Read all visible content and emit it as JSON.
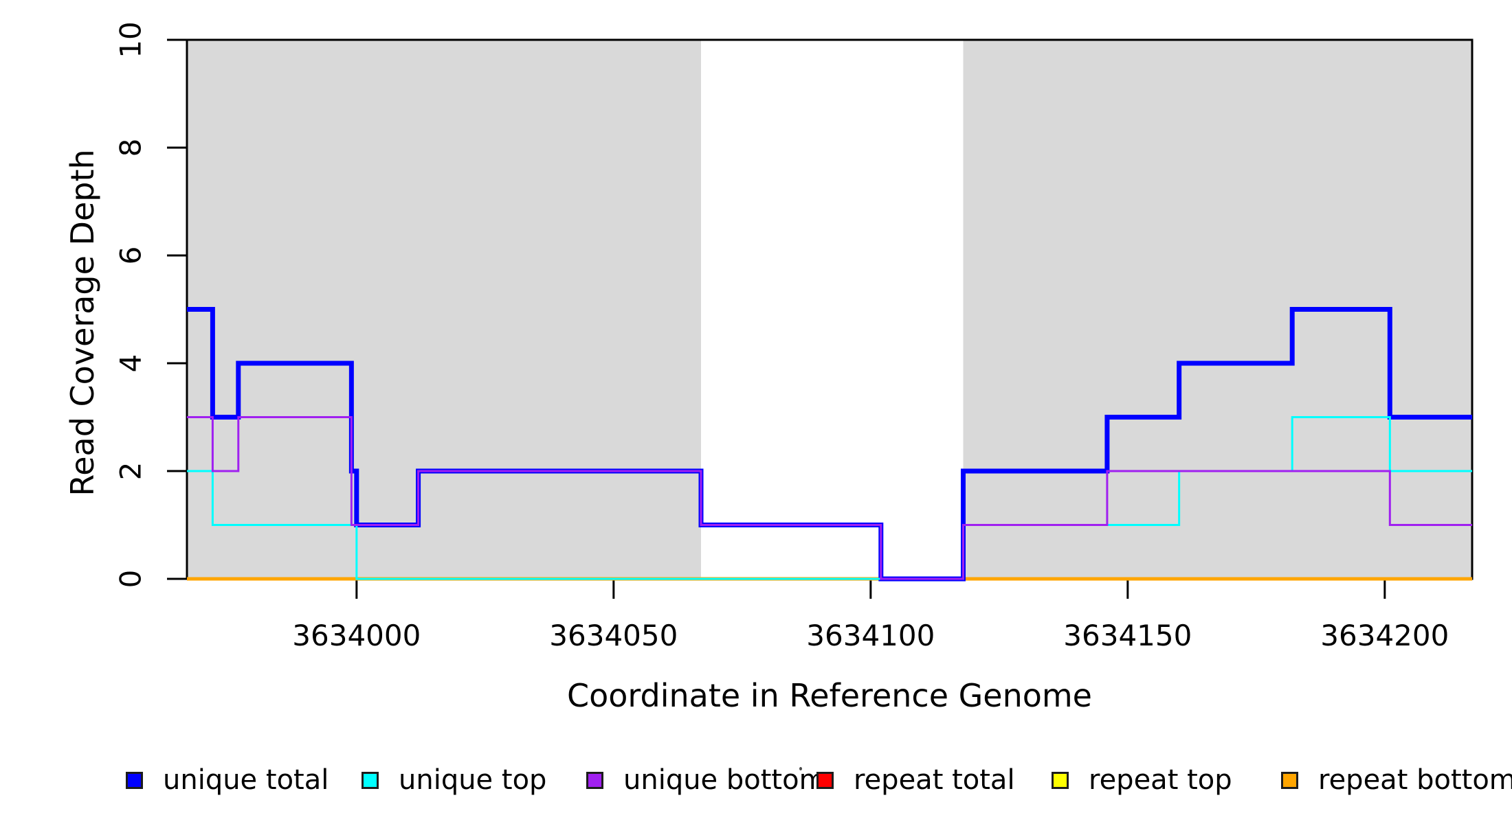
{
  "chart_data": {
    "type": "line",
    "subtype": "step-coverage",
    "title": "",
    "xlabel": "Coordinate in Reference Genome",
    "ylabel": "Read Coverage Depth",
    "xlim": [
      3633967,
      3634217
    ],
    "ylim": [
      0,
      10
    ],
    "x_ticks": [
      3634000,
      3634050,
      3634100,
      3634150,
      3634200
    ],
    "x_tick_labels": [
      "3634000",
      "3634050",
      "3634100",
      "3634150",
      "3634200"
    ],
    "y_ticks": [
      0,
      2,
      4,
      6,
      8,
      10
    ],
    "y_tick_labels": [
      "0",
      "2",
      "4",
      "6",
      "8",
      "10"
    ],
    "grid": false,
    "axis_color": "#000000",
    "background_shading": {
      "color": "#D9D9D9",
      "regions": [
        {
          "x0": 3633967,
          "x1": 3634067
        },
        {
          "x0": 3634118,
          "x1": 3634217
        }
      ]
    },
    "series": [
      {
        "name": "unique total",
        "color": "#0000FF",
        "line_width": 7,
        "z": 4,
        "steps": [
          [
            3633967,
            5
          ],
          [
            3633972,
            3
          ],
          [
            3633977,
            4
          ],
          [
            3633999,
            2
          ],
          [
            3634000,
            1
          ],
          [
            3634012,
            2
          ],
          [
            3634067,
            1
          ],
          [
            3634102,
            0
          ],
          [
            3634118,
            2
          ],
          [
            3634146,
            3
          ],
          [
            3634160,
            4
          ],
          [
            3634182,
            5
          ],
          [
            3634201,
            3
          ],
          [
            3634217,
            3
          ]
        ]
      },
      {
        "name": "unique top",
        "color": "#00FFFF",
        "line_width": 3,
        "z": 5,
        "steps": [
          [
            3633967,
            2
          ],
          [
            3633972,
            1
          ],
          [
            3634000,
            0
          ],
          [
            3634118,
            1
          ],
          [
            3634160,
            2
          ],
          [
            3634182,
            3
          ],
          [
            3634201,
            2
          ],
          [
            3634217,
            2
          ]
        ]
      },
      {
        "name": "unique bottom",
        "color": "#A020F0",
        "line_width": 3,
        "z": 6,
        "steps": [
          [
            3633967,
            3
          ],
          [
            3633972,
            2
          ],
          [
            3633977,
            3
          ],
          [
            3633999,
            1
          ],
          [
            3634012,
            2
          ],
          [
            3634067,
            1
          ],
          [
            3634102,
            0
          ],
          [
            3634118,
            1
          ],
          [
            3634146,
            2
          ],
          [
            3634201,
            1
          ],
          [
            3634217,
            1
          ]
        ]
      },
      {
        "name": "repeat total",
        "color": "#FF0000",
        "line_width": 3,
        "z": 1,
        "steps": [
          [
            3633967,
            0
          ],
          [
            3634217,
            0
          ]
        ]
      },
      {
        "name": "repeat top",
        "color": "#FFFF00",
        "line_width": 3,
        "z": 2,
        "steps": [
          [
            3633967,
            0
          ],
          [
            3634217,
            0
          ]
        ]
      },
      {
        "name": "repeat bottom",
        "color": "#FFA500",
        "line_width": 5,
        "z": 3,
        "steps": [
          [
            3633967,
            0
          ],
          [
            3634217,
            0
          ]
        ]
      }
    ],
    "legend": {
      "position": "bottom",
      "items": [
        {
          "label": "unique total",
          "color": "#0000FF"
        },
        {
          "label": "unique top",
          "color": "#00FFFF"
        },
        {
          "label": "unique bottom",
          "color": "#A020F0"
        },
        {
          "label": "repeat total",
          "color": "#FF0000"
        },
        {
          "label": "repeat top",
          "color": "#FFFF00"
        },
        {
          "label": "repeat bottom",
          "color": "#FFA500"
        }
      ]
    }
  }
}
